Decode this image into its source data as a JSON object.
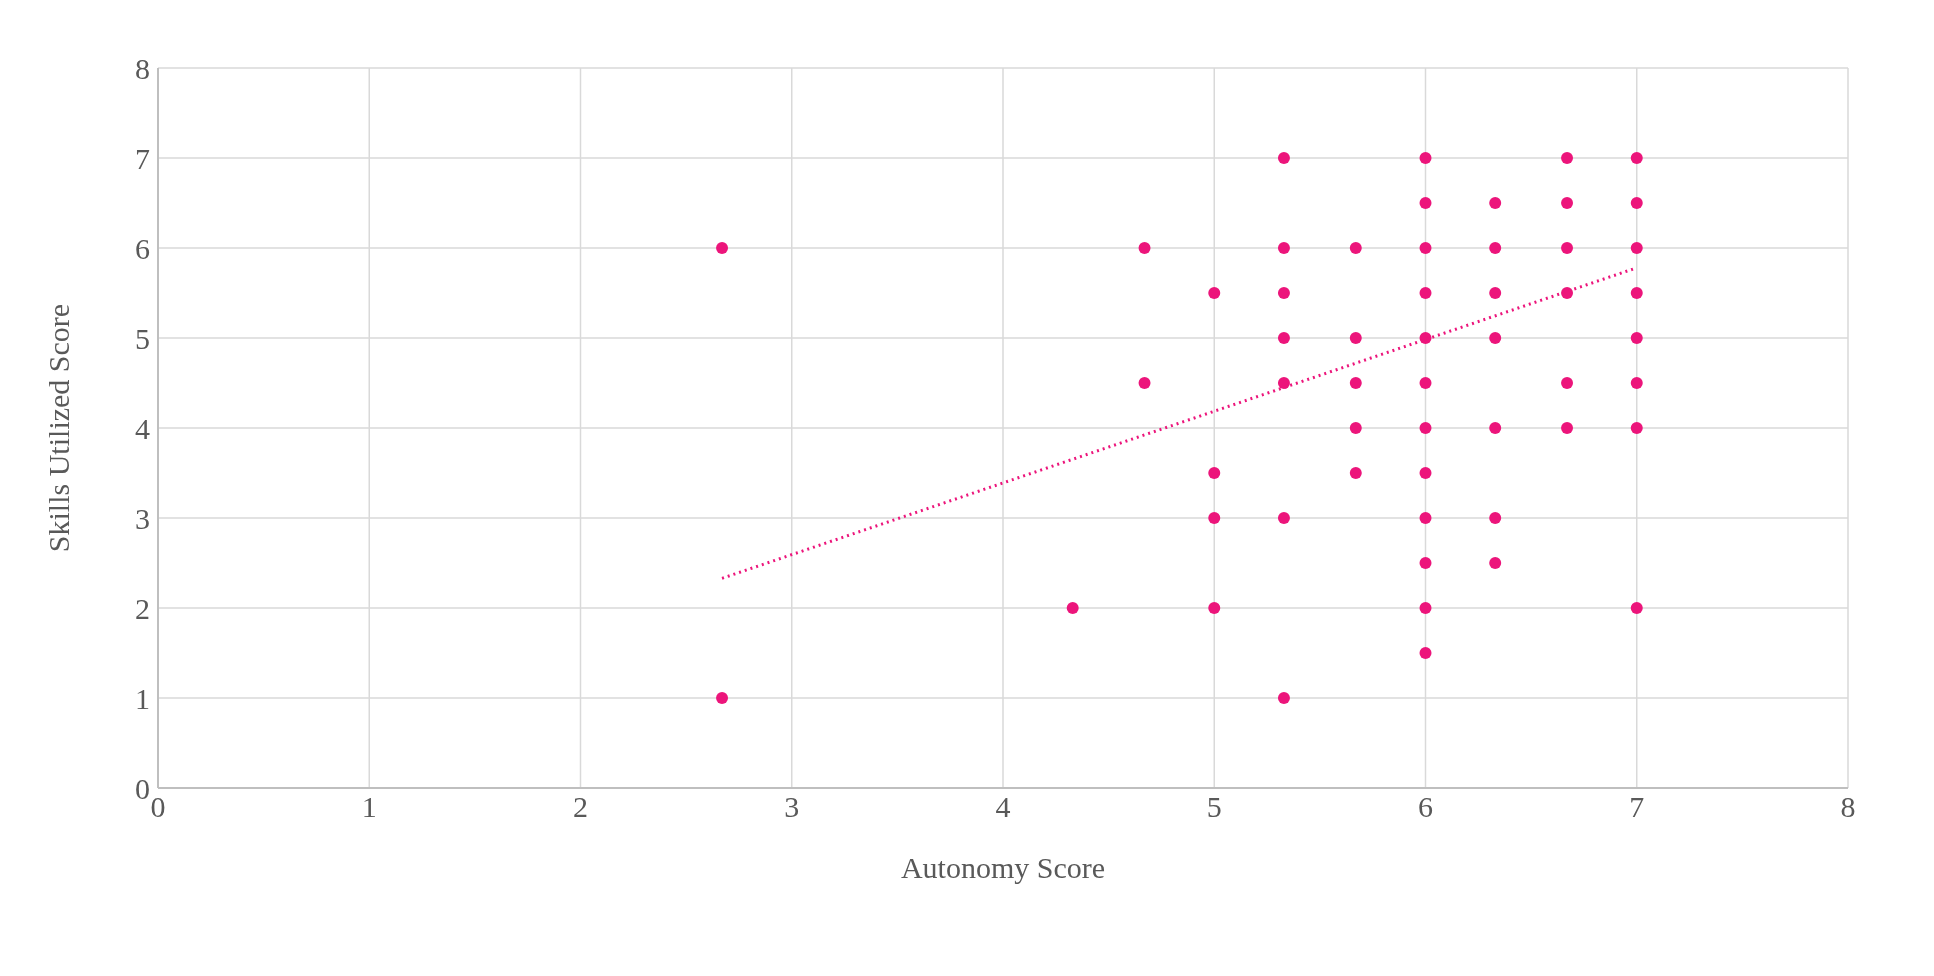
{
  "chart_data": {
    "type": "scatter",
    "xlabel": "Autonomy Score",
    "ylabel": "Skills Utilized Score",
    "xlim": [
      0,
      8
    ],
    "xticks": [
      0,
      1,
      2,
      3,
      4,
      5,
      6,
      7,
      8
    ],
    "ylim": [
      0,
      8
    ],
    "yticks": [
      0,
      1,
      2,
      3,
      4,
      5,
      6,
      7,
      8
    ],
    "grid": true,
    "marker": "circle",
    "series": [
      {
        "color": "#ec157b",
        "x": [
          2.67,
          2.67,
          4.33,
          4.67,
          4.67,
          5,
          5,
          5,
          5,
          5.33,
          5.33,
          5.33,
          5.33,
          5.33,
          5.33,
          5.33,
          5.67,
          5.67,
          5.67,
          5.67,
          5.67,
          6,
          6,
          6,
          6,
          6,
          6,
          6,
          6,
          6,
          6,
          6,
          6,
          6.33,
          6.33,
          6.33,
          6.33,
          6.33,
          6.33,
          6.33,
          6.67,
          6.67,
          6.67,
          6.67,
          6.67,
          6.67,
          7,
          7,
          7,
          7,
          7,
          7,
          7,
          7
        ],
        "values": [
          6,
          1,
          2,
          6,
          4.5,
          5.5,
          3.5,
          3,
          2,
          7,
          6,
          5.5,
          5,
          4.5,
          3,
          1,
          6,
          5,
          4.5,
          4,
          3.5,
          7,
          6.5,
          6,
          5.5,
          5,
          4.5,
          4,
          3.5,
          3,
          2.5,
          2,
          1.5,
          6.5,
          6,
          5.5,
          5,
          4,
          3,
          2.5,
          7,
          6.5,
          6,
          5.5,
          4.5,
          4,
          7,
          6.5,
          6,
          5.5,
          5,
          4.5,
          4,
          2
        ]
      },
      {
        "type": "line",
        "color": "#ec157b",
        "line_style": "dotted",
        "marker": "none",
        "x": [
          2.67,
          7
        ],
        "values": [
          2.33,
          5.78
        ]
      }
    ]
  }
}
